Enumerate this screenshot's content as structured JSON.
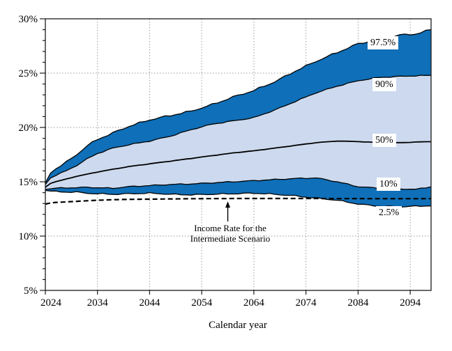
{
  "chart_data": {
    "type": "area",
    "title": "",
    "xlabel": "Calendar year",
    "ylabel": "",
    "xlim": [
      2024,
      2098
    ],
    "ylim": [
      5,
      30
    ],
    "x_ticks": [
      2024,
      2034,
      2044,
      2054,
      2064,
      2074,
      2084,
      2094
    ],
    "y_ticks": [
      5,
      10,
      15,
      20,
      25,
      30
    ],
    "y_tick_labels": [
      "5%",
      "10%",
      "15%",
      "20%",
      "25%",
      "30%"
    ],
    "grid": {
      "horizontal": [
        10,
        15,
        20,
        25
      ],
      "vertical": [
        2034,
        2044,
        2054,
        2064,
        2074,
        2084,
        2094
      ],
      "style": "dotted"
    },
    "x": [
      2024,
      2025,
      2026,
      2028,
      2030,
      2032,
      2034,
      2037,
      2040,
      2044,
      2048,
      2052,
      2056,
      2060,
      2064,
      2068,
      2072,
      2076,
      2080,
      2084,
      2088,
      2092,
      2095,
      2098
    ],
    "series": [
      {
        "name": "97.5%",
        "role": "upper-fan-edge",
        "values": [
          14.9,
          15.8,
          16.2,
          16.8,
          17.5,
          18.3,
          18.9,
          19.5,
          20.1,
          20.7,
          21.1,
          21.5,
          22.1,
          22.8,
          23.4,
          24.2,
          25.2,
          26.1,
          26.9,
          27.7,
          28.1,
          28.5,
          28.6,
          29.0
        ]
      },
      {
        "name": "90%",
        "role": "dark-band-boundary",
        "values": [
          14.75,
          15.35,
          15.6,
          16.0,
          16.5,
          17.1,
          17.6,
          18.1,
          18.4,
          18.75,
          19.2,
          19.8,
          20.3,
          20.6,
          20.9,
          21.6,
          22.4,
          23.2,
          23.8,
          24.3,
          24.6,
          24.7,
          24.75,
          24.8
        ]
      },
      {
        "name": "50%",
        "role": "median-line",
        "values": [
          14.5,
          14.85,
          15.0,
          15.25,
          15.5,
          15.7,
          15.9,
          16.15,
          16.4,
          16.65,
          16.9,
          17.15,
          17.4,
          17.65,
          17.85,
          18.1,
          18.35,
          18.6,
          18.75,
          18.7,
          18.6,
          18.6,
          18.65,
          18.7
        ]
      },
      {
        "name": "10%",
        "role": "dark-band-boundary",
        "values": [
          14.3,
          14.35,
          14.4,
          14.45,
          14.45,
          14.5,
          14.45,
          14.4,
          14.55,
          14.65,
          14.75,
          14.8,
          14.9,
          15.0,
          15.1,
          15.2,
          15.3,
          15.35,
          15.0,
          14.55,
          14.4,
          14.35,
          14.3,
          14.55
        ]
      },
      {
        "name": "2.5%",
        "role": "lower-fan-edge",
        "values": [
          14.2,
          14.15,
          14.1,
          14.05,
          14.05,
          13.95,
          13.9,
          13.85,
          13.9,
          13.95,
          13.85,
          13.8,
          13.85,
          13.9,
          13.95,
          13.85,
          13.7,
          13.5,
          13.3,
          12.95,
          12.75,
          12.7,
          12.75,
          12.8
        ]
      },
      {
        "name": "Income Rate for the Intermediate Scenario",
        "role": "dashed-reference-line",
        "values": [
          12.95,
          13.05,
          13.1,
          13.15,
          13.2,
          13.25,
          13.3,
          13.35,
          13.38,
          13.4,
          13.42,
          13.44,
          13.45,
          13.46,
          13.46,
          13.46,
          13.46,
          13.46,
          13.45,
          13.45,
          13.44,
          13.44,
          13.44,
          13.45
        ]
      }
    ],
    "band_labels": [
      {
        "text": "97.5%"
      },
      {
        "text": "90%"
      },
      {
        "text": "50%"
      },
      {
        "text": "10%"
      },
      {
        "text": "2.5%"
      }
    ],
    "annotation": {
      "line1": "Income Rate for the",
      "line2": "Intermediate Scenario",
      "arrow_year": 2059
    },
    "colors": {
      "dark_band": "#0f6fb8",
      "light_band": "#ccd9ee",
      "line": "#000000",
      "grid": "#9a9a9a",
      "background": "#ffffff"
    },
    "legend_position": "none"
  }
}
